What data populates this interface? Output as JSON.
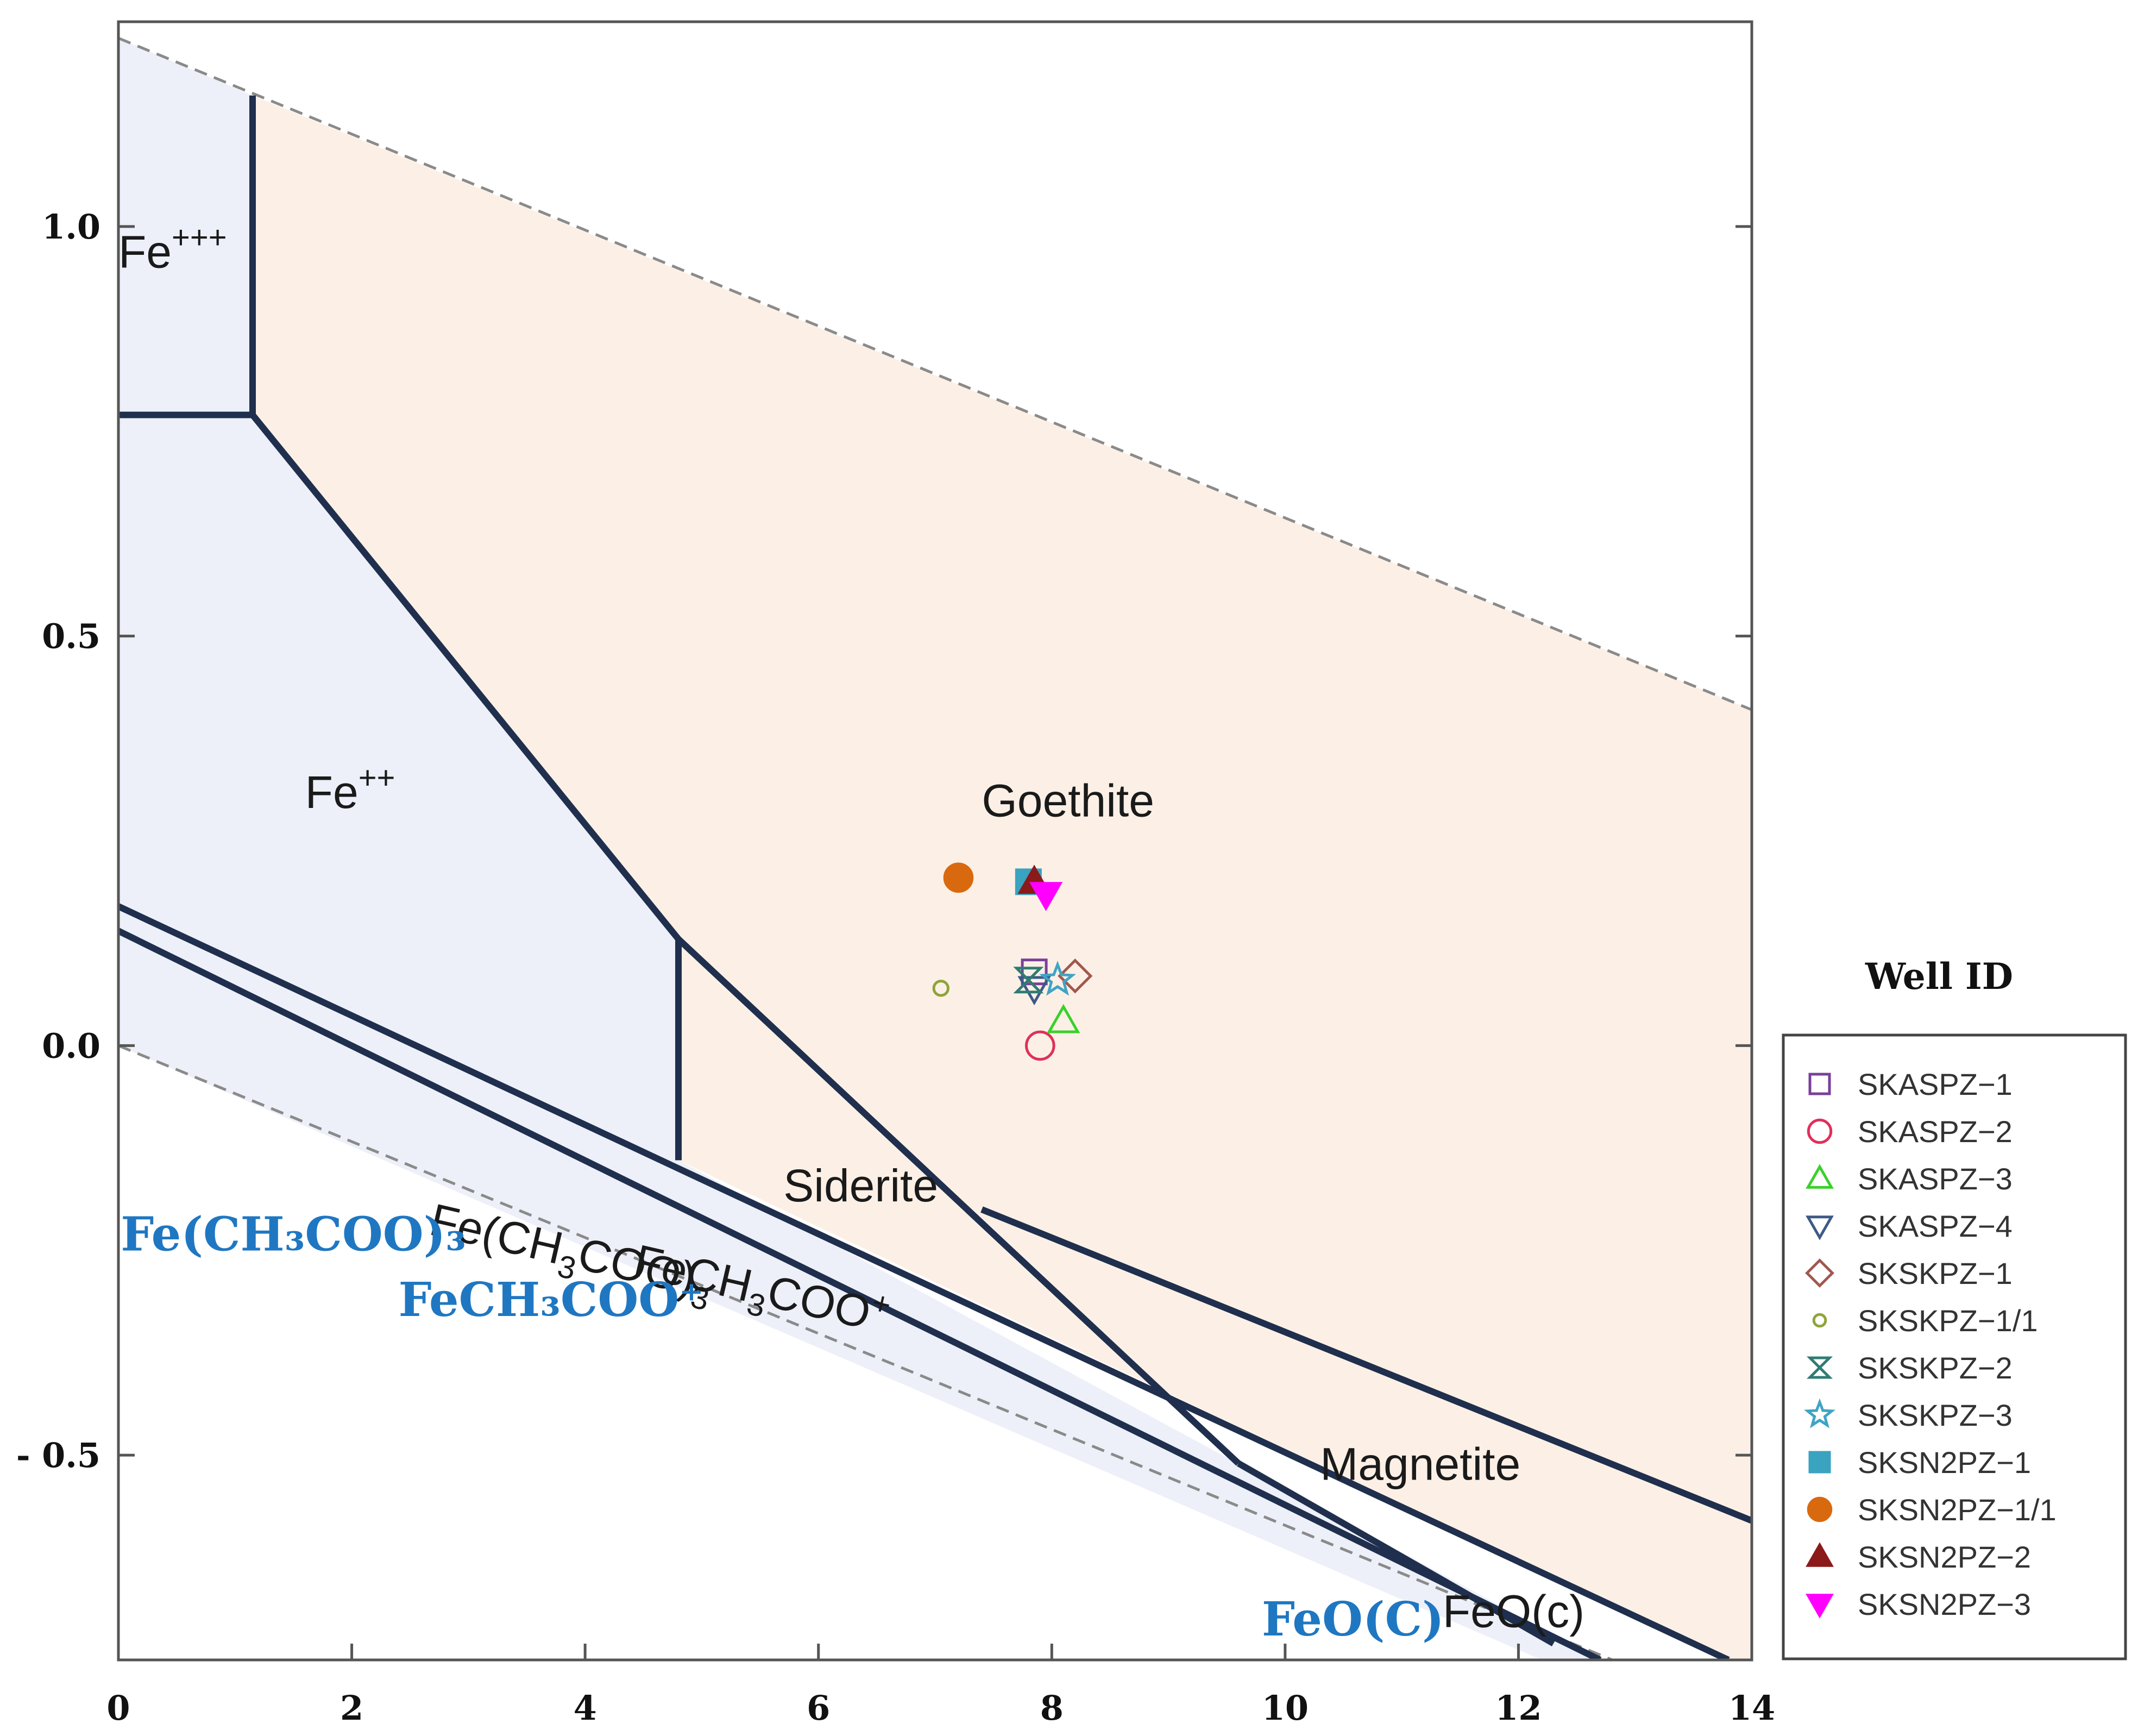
{
  "chart_data": {
    "type": "scatter",
    "title": "",
    "xlabel": "",
    "ylabel": "",
    "xlim": [
      0,
      14
    ],
    "ylim": [
      -0.75,
      1.25
    ],
    "x_ticks": [
      0,
      2,
      4,
      6,
      8,
      10,
      12,
      14
    ],
    "x_tick_labels": [
      "0",
      "2",
      "4",
      "6",
      "8",
      "10",
      "12",
      "14"
    ],
    "y_ticks": [
      1.0,
      0.5,
      0.0,
      -0.5
    ],
    "y_tick_labels": [
      "1.0",
      "0.5",
      "0.0",
      "- 0.5"
    ],
    "water_limits": {
      "upper": [
        [
          0,
          1.23
        ],
        [
          14,
          0.41
        ]
      ],
      "lower": [
        [
          0,
          0.0
        ],
        [
          14,
          -0.82
        ]
      ]
    },
    "boundaries": [
      {
        "name": "Fe+++/Goethite",
        "points": [
          [
            1.15,
            1.16
          ],
          [
            1.15,
            0.77
          ]
        ]
      },
      {
        "name": "Fe+++/Fe++",
        "points": [
          [
            0,
            0.77
          ],
          [
            1.15,
            0.77
          ]
        ]
      },
      {
        "name": "Fe++/Goethite",
        "points": [
          [
            1.15,
            0.77
          ],
          [
            4.8,
            0.13
          ]
        ]
      },
      {
        "name": "Fe++/Siderite",
        "points": [
          [
            4.8,
            0.13
          ],
          [
            4.8,
            -0.14
          ]
        ]
      },
      {
        "name": "Siderite/Goethite",
        "points": [
          [
            4.8,
            0.13
          ],
          [
            9.6,
            -0.51
          ]
        ]
      },
      {
        "name": "Siderite/Magnetite",
        "points": [
          [
            7.4,
            -0.2
          ],
          [
            14,
            -0.58
          ]
        ]
      },
      {
        "name": "Magnetite/FeO(c)",
        "points": [
          [
            9.6,
            -0.51
          ],
          [
            12.3,
            -0.73
          ]
        ]
      },
      {
        "name": "Fe(CH3COO)3 upper",
        "points": [
          [
            0,
            0.17
          ],
          [
            13.8,
            -0.75
          ]
        ]
      },
      {
        "name": "Fe(CH3COO)3 lower",
        "points": [
          [
            0,
            0.14
          ],
          [
            12.7,
            -0.75
          ]
        ]
      }
    ],
    "regions": [
      {
        "name": "Fe+++",
        "fill": "#edf0f9",
        "points": [
          [
            0,
            1.23
          ],
          [
            1.15,
            1.16
          ],
          [
            1.15,
            0.77
          ],
          [
            0,
            0.77
          ]
        ]
      },
      {
        "name": "Fe++",
        "fill": "#edf0f9",
        "points": [
          [
            0,
            0.77
          ],
          [
            1.15,
            0.77
          ],
          [
            4.8,
            0.13
          ],
          [
            4.8,
            -0.14
          ],
          [
            0,
            0.14
          ]
        ]
      },
      {
        "name": "lower-band",
        "fill": "#edf0f9",
        "points": [
          [
            0,
            0.14
          ],
          [
            4.8,
            -0.14
          ],
          [
            12.7,
            -0.75
          ],
          [
            12.2,
            -0.75
          ],
          [
            0,
            0.0
          ]
        ]
      },
      {
        "name": "Goethite-field",
        "fill": "#fcf0e6",
        "points": [
          [
            1.15,
            1.16
          ],
          [
            14,
            0.41
          ],
          [
            14,
            -0.75
          ],
          [
            13.8,
            -0.75
          ],
          [
            4.8,
            -0.14
          ],
          [
            4.8,
            0.13
          ],
          [
            1.15,
            0.77
          ]
        ]
      }
    ],
    "region_labels": [
      {
        "text": "Fe",
        "sup": "+++",
        "x": 0.0,
        "y": 0.95
      },
      {
        "text": "Fe",
        "sup": "++",
        "x": 1.6,
        "y": 0.29
      },
      {
        "text": "Goethite",
        "x": 7.4,
        "y": 0.28
      },
      {
        "text": "Siderite",
        "x": 5.7,
        "y": -0.19
      },
      {
        "text": "Magnetite",
        "x": 10.3,
        "y": -0.53
      },
      {
        "text": "FeO(c)",
        "x": 11.35,
        "y": -0.71
      }
    ],
    "mixed_labels": [
      {
        "parts": [
          "Fe(CH",
          "3",
          "COO)",
          "3"
        ],
        "x": 2.65,
        "y": -0.23
      },
      {
        "parts": [
          "FeCH",
          "3",
          "COO",
          "+"
        ],
        "x": 4.4,
        "y": -0.28
      }
    ],
    "blue_labels": [
      {
        "text": "Fe(CH₃COO)₃",
        "x": 0.02,
        "y": -0.25,
        "color": "#1f77c2"
      },
      {
        "text": "FeCH₃COO⁺",
        "x": 2.4,
        "y": -0.33,
        "color": "#1f77c2"
      },
      {
        "text": "FeO(C)",
        "x": 9.8,
        "y": -0.72,
        "color": "#1f77c2"
      }
    ],
    "series": [
      {
        "name": "SKASPZ-1",
        "marker": "square",
        "filled": false,
        "color": "#7b3f9a",
        "x": [
          7.85
        ],
        "y": [
          0.09
        ]
      },
      {
        "name": "SKASPZ-2",
        "marker": "circle",
        "filled": false,
        "color": "#e0305a",
        "x": [
          7.9
        ],
        "y": [
          0.0
        ]
      },
      {
        "name": "SKASPZ-3",
        "marker": "triangle-up",
        "filled": false,
        "color": "#39d12a",
        "x": [
          8.1
        ],
        "y": [
          0.03
        ]
      },
      {
        "name": "SKASPZ-4",
        "marker": "triangle-down",
        "filled": false,
        "color": "#3d5a86",
        "x": [
          7.85
        ],
        "y": [
          0.07
        ]
      },
      {
        "name": "SKSKPZ-1",
        "marker": "diamond",
        "filled": false,
        "color": "#a0584f",
        "x": [
          8.2
        ],
        "y": [
          0.085
        ]
      },
      {
        "name": "SKSKPZ-1/1",
        "marker": "small-circle",
        "filled": false,
        "color": "#8fa43a",
        "x": [
          7.05
        ],
        "y": [
          0.07
        ]
      },
      {
        "name": "SKSKPZ-2",
        "marker": "hourglass",
        "filled": false,
        "color": "#2f7c74",
        "x": [
          7.8
        ],
        "y": [
          0.08
        ]
      },
      {
        "name": "SKSKPZ-3",
        "marker": "star",
        "filled": false,
        "color": "#3fa4c4",
        "x": [
          8.05
        ],
        "y": [
          0.08
        ]
      },
      {
        "name": "SKSN2PZ-1",
        "marker": "square",
        "filled": true,
        "color": "#3aa3c0",
        "x": [
          7.8
        ],
        "y": [
          0.2
        ]
      },
      {
        "name": "SKSN2PZ-1/1",
        "marker": "circle",
        "filled": true,
        "color": "#d9690f",
        "x": [
          7.2
        ],
        "y": [
          0.205
        ]
      },
      {
        "name": "SKSN2PZ-2",
        "marker": "triangle-up",
        "filled": true,
        "color": "#8b1a1a",
        "x": [
          7.85
        ],
        "y": [
          0.2
        ]
      },
      {
        "name": "SKSN2PZ-3",
        "marker": "triangle-down",
        "filled": true,
        "color": "#ff00ff",
        "x": [
          7.95
        ],
        "y": [
          0.185
        ]
      }
    ],
    "legend": {
      "title": "Well ID",
      "position": "right"
    }
  }
}
